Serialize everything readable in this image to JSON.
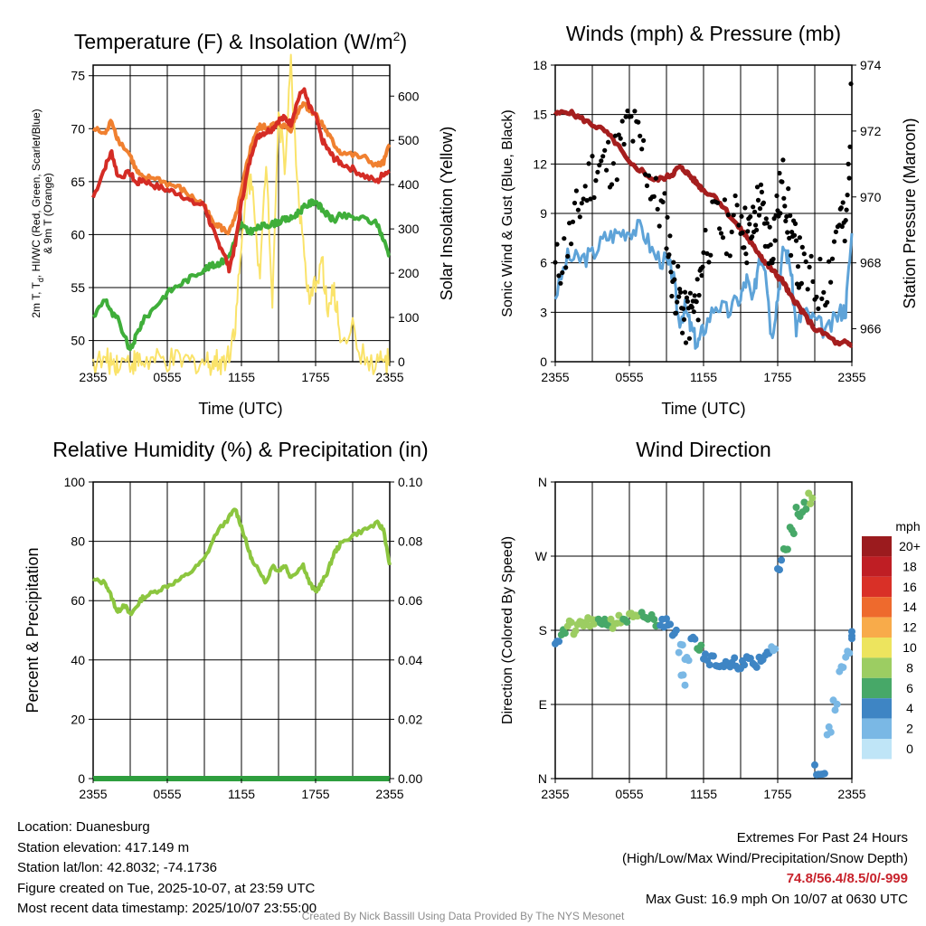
{
  "colors": {
    "temp": "#d42c25",
    "dewpoint": "#3fae3a",
    "windchill": "#f08030",
    "solar": "#fae36a",
    "wind": "#5ea3d8",
    "gust": "#000000",
    "pressure": "#a51e1e",
    "rh": "#8cc63f",
    "precip": "#2e9e3e",
    "extremes": "#c8232c"
  },
  "chart_data": [
    {
      "id": "temperature",
      "type": "line",
      "title": "Temperature (F) & Insolation (W/m²)",
      "title_main": "Temperature (F) & Insolation (W/m",
      "title_sup": "2",
      "title_end": ")",
      "xlabel": "Time (UTC)",
      "ylabel": "2m T, Td, HI/WC (Red, Green, Scarlet/Blue) & 9m T (Orange)",
      "ylabel_line1": "2m T, T",
      "ylabel_sub": "d",
      "ylabel_line1_end": ", HI/WC (Red, Green, Scarlet/Blue)",
      "ylabel_line2": "& 9m T (Orange)",
      "y2label": "Solar Insolation (Yellow)",
      "x_ticks": [
        "2355",
        "0555",
        "1155",
        "1755",
        "2355"
      ],
      "ylim": [
        48,
        76
      ],
      "y_ticks": [
        50,
        55,
        60,
        65,
        70,
        75
      ],
      "y2lim": [
        0,
        670
      ],
      "y2_ticks": [
        0,
        100,
        200,
        300,
        400,
        500,
        600
      ],
      "x_hours": [
        0,
        1,
        1.5,
        2,
        3,
        3.5,
        4,
        5,
        6,
        7,
        8,
        9,
        9.5,
        10,
        10.5,
        11,
        11.5,
        12,
        12.5,
        13,
        13.5,
        14,
        14.5,
        15,
        15.5,
        16,
        16.5,
        17,
        17.5,
        18,
        18.5,
        19,
        19.5,
        20,
        21,
        22,
        23,
        23.5,
        24
      ],
      "series": [
        {
          "name": "2m T (Red)",
          "values": [
            63.5,
            66.5,
            67.8,
            65.5,
            65.8,
            64.8,
            65.2,
            64.6,
            64.2,
            63.9,
            63.0,
            62.8,
            61.0,
            59.5,
            58.5,
            56.8,
            59.0,
            63.0,
            66.0,
            68.5,
            69.5,
            69.7,
            70.0,
            70.8,
            71.0,
            70.5,
            72.5,
            73.8,
            72.0,
            71.2,
            69.0,
            68.0,
            67.2,
            66.8,
            66.2,
            65.5,
            65.0,
            65.8,
            66.0
          ]
        },
        {
          "name": "9m T (Orange)",
          "values": [
            70.0,
            69.5,
            70.8,
            69.0,
            67.5,
            66.0,
            65.3,
            65.4,
            64.8,
            64.4,
            63.5,
            62.8,
            61.5,
            61.0,
            60.5,
            60.2,
            61.5,
            64.0,
            67.0,
            69.2,
            70.2,
            70.1,
            70.3,
            70.5,
            70.2,
            70.0,
            71.5,
            72.5,
            71.8,
            71.4,
            70.5,
            69.5,
            68.5,
            67.8,
            67.5,
            67.2,
            66.5,
            66.8,
            68.5
          ]
        },
        {
          "name": "Dew Point (Green)",
          "values": [
            52.2,
            54.0,
            52.5,
            52.0,
            49.0,
            50.5,
            51.8,
            53.2,
            54.5,
            55.3,
            56.0,
            56.8,
            57.0,
            57.2,
            57.5,
            58.0,
            59.5,
            61.0,
            60.3,
            60.4,
            60.7,
            60.9,
            61.0,
            61.2,
            61.4,
            61.5,
            62.0,
            62.5,
            62.9,
            63.2,
            62.4,
            61.8,
            61.3,
            61.8,
            61.6,
            61.5,
            61.0,
            59.5,
            58.0
          ]
        },
        {
          "name": "Solar Insolation (Yellow)",
          "axis": "right",
          "values": [
            0,
            0,
            0,
            0,
            0,
            0,
            0,
            0,
            0,
            0,
            0,
            0,
            0,
            0,
            0,
            20,
            90,
            250,
            420,
            380,
            180,
            460,
            150,
            560,
            450,
            670,
            420,
            260,
            120,
            180,
            230,
            110,
            160,
            60,
            70,
            0,
            0,
            0,
            0
          ]
        }
      ]
    },
    {
      "id": "winds",
      "type": "scatter",
      "title": "Winds (mph) & Pressure (mb)",
      "xlabel": "Time (UTC)",
      "ylabel": "Sonic Wind & Gust (Blue, Black)",
      "y2label": "Station Pressure (Maroon)",
      "x_ticks": [
        "2355",
        "0555",
        "1155",
        "1755",
        "2355"
      ],
      "ylim": [
        0,
        18
      ],
      "y_ticks": [
        0,
        3,
        6,
        9,
        12,
        15,
        18
      ],
      "y2lim": [
        965,
        974
      ],
      "y2_ticks": [
        966,
        968,
        970,
        972,
        974
      ],
      "x_hours": [
        0,
        1,
        2,
        3,
        4,
        5,
        6,
        7,
        8,
        9,
        9.5,
        10,
        10.5,
        11,
        11.5,
        12,
        13,
        14,
        15,
        15.5,
        16,
        16.5,
        17,
        17.5,
        18,
        18.5,
        19,
        19.5,
        20,
        21,
        22,
        23,
        23.5,
        24
      ],
      "series": [
        {
          "name": "Sonic Wind (Blue)",
          "values": [
            4.0,
            6.3,
            6.2,
            6.5,
            7.5,
            7.8,
            8.0,
            8.1,
            6.5,
            6.0,
            5.4,
            2.5,
            3.2,
            2.0,
            1.0,
            2.0,
            3.5,
            3.0,
            4.0,
            5.0,
            3.5,
            6.5,
            6.0,
            1.5,
            4.0,
            7.0,
            6.0,
            2.0,
            3.0,
            2.5,
            1.8,
            3.0,
            3.2,
            7.8
          ]
        },
        {
          "name": "Gust (Black)",
          "values": [
            5.5,
            7.0,
            9.5,
            11.5,
            12.0,
            12.5,
            14.5,
            13.0,
            10.0,
            8.5,
            5.0,
            4.0,
            2.5,
            3.0,
            3.5,
            7.0,
            8.5,
            8.0,
            9.0,
            7.5,
            8.0,
            10.0,
            8.0,
            7.0,
            9.5,
            11.0,
            8.0,
            6.5,
            5.5,
            4.5,
            5.0,
            9.0,
            7.5,
            16.5
          ]
        },
        {
          "name": "Station Pressure (Maroon)",
          "axis": "right",
          "values": [
            972.5,
            972.6,
            972.4,
            972.2,
            972.0,
            971.6,
            971.0,
            970.8,
            970.5,
            970.6,
            970.7,
            970.9,
            970.8,
            970.6,
            970.4,
            970.2,
            970.0,
            969.5,
            969.0,
            968.8,
            968.5,
            968.3,
            968.0,
            967.8,
            967.6,
            967.4,
            967.0,
            966.8,
            966.5,
            966.0,
            965.8,
            965.5,
            965.6,
            965.5
          ]
        }
      ]
    },
    {
      "id": "humidity",
      "type": "line",
      "title": "Relative Humidity (%) & Precipitation (in)",
      "ylabel": "Percent & Precipitation",
      "x_ticks": [
        "2355",
        "0555",
        "1155",
        "1755",
        "2355"
      ],
      "ylim": [
        0,
        100
      ],
      "y_ticks": [
        0,
        20,
        40,
        60,
        80,
        100
      ],
      "y2lim": [
        0,
        0.1
      ],
      "y2_ticks": [
        "0.00",
        "0.02",
        "0.04",
        "0.06",
        "0.08",
        "0.10"
      ],
      "x_hours": [
        0,
        1,
        1.5,
        2,
        2.5,
        3,
        3.5,
        4,
        5,
        6,
        7,
        8,
        9,
        10,
        11,
        11.5,
        12,
        12.5,
        13,
        13.5,
        14,
        14.5,
        15,
        15.5,
        16,
        17,
        17.5,
        18,
        18.5,
        19,
        19.5,
        20,
        21,
        22,
        23,
        23.5,
        24
      ],
      "series": [
        {
          "name": "Relative Humidity",
          "values": [
            67,
            66,
            61,
            56,
            59,
            55,
            58,
            61,
            63,
            65,
            67,
            70,
            74,
            83,
            88,
            91,
            85,
            78,
            72,
            70,
            66,
            72,
            70,
            72,
            68,
            72,
            66,
            63,
            66,
            70,
            76,
            79,
            82,
            84,
            86,
            84,
            72
          ]
        },
        {
          "name": "Precipitation",
          "axis": "right",
          "values": [
            0,
            0,
            0,
            0,
            0,
            0,
            0,
            0,
            0,
            0,
            0,
            0,
            0,
            0,
            0,
            0,
            0,
            0,
            0,
            0,
            0,
            0,
            0,
            0,
            0,
            0,
            0,
            0,
            0,
            0,
            0,
            0,
            0,
            0,
            0,
            0,
            0
          ]
        }
      ]
    },
    {
      "id": "direction",
      "type": "scatter",
      "title": "Wind Direction",
      "ylabel": "Direction (Colored By Speed)",
      "x_ticks": [
        "2355",
        "0555",
        "1155",
        "1755",
        "2355"
      ],
      "ylim": [
        0,
        360
      ],
      "y_ticks": [
        "N",
        "E",
        "S",
        "W",
        "N"
      ],
      "x_hours": [
        0,
        0.5,
        1,
        1.5,
        2,
        2.5,
        3,
        3.5,
        4,
        4.5,
        5,
        5.5,
        6,
        6.5,
        7,
        7.5,
        8,
        8.5,
        9,
        9.5,
        10,
        10.2,
        10.5,
        11,
        11.5,
        12,
        12.5,
        13,
        13.5,
        14,
        14.5,
        15,
        15.5,
        16,
        16.5,
        17,
        17.5,
        18,
        18.5,
        19,
        19.5,
        20,
        20.5,
        21,
        21.5,
        22,
        22.5,
        23,
        23.5,
        24
      ],
      "directions": [
        170,
        178,
        185,
        180,
        188,
        190,
        186,
        192,
        190,
        189,
        192,
        194,
        195,
        193,
        196,
        195,
        190,
        188,
        192,
        180,
        160,
        120,
        150,
        175,
        160,
        150,
        145,
        140,
        138,
        135,
        140,
        138,
        142,
        138,
        145,
        150,
        160,
        260,
        275,
        300,
        325,
        330,
        340,
        10,
        5,
        60,
        90,
        130,
        150,
        175
      ],
      "speeds": [
        3,
        6,
        7,
        7,
        7,
        7,
        7,
        6,
        6,
        7,
        7,
        6,
        7,
        7,
        6,
        6,
        6,
        4,
        4,
        3,
        1,
        1,
        1,
        4,
        5,
        4,
        4,
        4,
        4,
        4,
        4,
        4,
        4,
        4,
        4,
        4,
        2,
        4,
        5,
        6,
        6,
        6,
        7,
        4,
        4,
        2,
        2,
        2,
        2,
        3
      ],
      "legend": {
        "title": "mph",
        "labels": [
          "20+",
          "18",
          "16",
          "14",
          "12",
          "10",
          "8",
          "6",
          "4",
          "2",
          "0"
        ],
        "colors": [
          "#9b1b1e",
          "#bf1e24",
          "#d93027",
          "#ee6a2d",
          "#f8ab4a",
          "#ede45e",
          "#9ccd62",
          "#47a868",
          "#3e85c4",
          "#7ab8e5",
          "#bfe5f7"
        ]
      }
    }
  ],
  "station_info": {
    "location": "Location: Duanesburg",
    "elevation": "Station elevation: 417.149 m",
    "latlon": "Station lat/lon: 42.8032; -74.1736",
    "created": "Figure created on Tue, 2025-10-07, at 23:59 UTC",
    "recent": "Most recent data timestamp: 2025/10/07 23:55:00"
  },
  "extremes": {
    "heading": "Extremes For Past 24 Hours",
    "subheading": "(High/Low/Max Wind/Precipitation/Snow Depth)",
    "values": "74.8/56.4/8.5/0/-999",
    "gust": "Max Gust: 16.9 mph On 10/07 at 0630 UTC"
  },
  "credit": "Created By Nick Bassill Using Data Provided By The NYS Mesonet"
}
